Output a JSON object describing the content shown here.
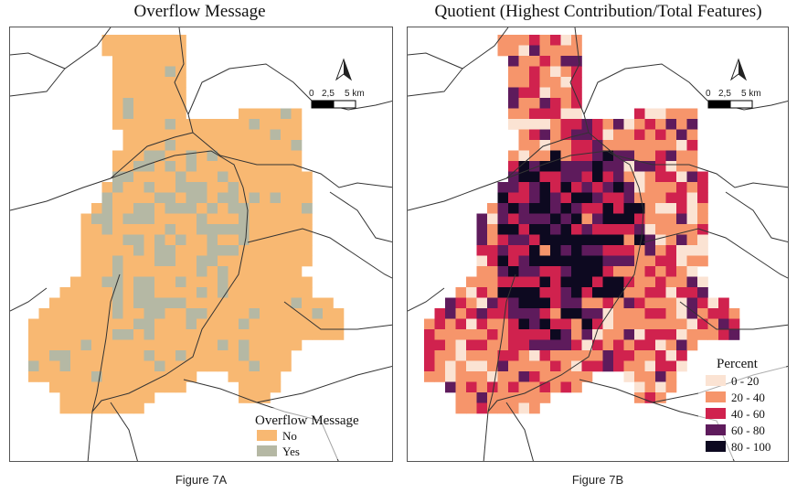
{
  "panel_a": {
    "title": "Overflow Message",
    "caption": "Figure 7A",
    "legend": {
      "title": "Overflow Message",
      "items": [
        {
          "label": "No",
          "color": "#f8b872"
        },
        {
          "label": "Yes",
          "color": "#b5b8a4"
        }
      ]
    },
    "scale": {
      "labels": [
        "0",
        "2,5",
        "5 km"
      ]
    }
  },
  "panel_b": {
    "title": "Quotient (Highest Contribution/Total Features)",
    "caption": "Figure 7B",
    "legend": {
      "title": "Percent",
      "items": [
        {
          "label": "0 - 20",
          "color": "#fbe3d3"
        },
        {
          "label": "20 - 40",
          "color": "#f6956b"
        },
        {
          "label": "40 - 60",
          "color": "#d0224e"
        },
        {
          "label": "60 - 80",
          "color": "#5e1b5c"
        },
        {
          "label": "80 - 100",
          "color": "#0d0920"
        }
      ]
    },
    "scale": {
      "labels": [
        "0",
        "2,5",
        "5 km"
      ]
    }
  },
  "colors": {
    "border_lines": "#333333",
    "frame": "#555555"
  },
  "icons": {
    "north_arrow": "north-arrow-icon"
  }
}
